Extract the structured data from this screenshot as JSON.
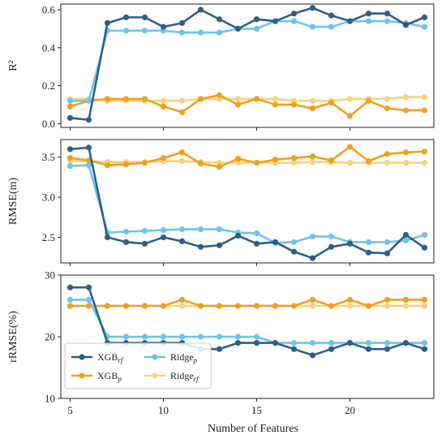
{
  "chart_data": {
    "type": "line",
    "xlabel": "Number of Features",
    "x": [
      5,
      6,
      7,
      8,
      9,
      10,
      11,
      12,
      13,
      14,
      15,
      16,
      17,
      18,
      19,
      20,
      21,
      22,
      23,
      24
    ],
    "xlim": [
      4.5,
      24.5
    ],
    "xticks": [
      5,
      10,
      15,
      20
    ],
    "colors": {
      "xgb_rf": "#2f5f86",
      "xgb_p": "#f0a020",
      "ridge_p": "#6ec4ec",
      "ridge_rf": "#f8d27a"
    },
    "legend": {
      "placement": "lower-left",
      "entries": [
        {
          "key": "xgb_rf",
          "base": "XGB",
          "sub": "rf"
        },
        {
          "key": "xgb_p",
          "base": "XGB",
          "sub": "p"
        },
        {
          "key": "ridge_p",
          "base": "Ridge",
          "sub": "p"
        },
        {
          "key": "ridge_rf",
          "base": "Ridge",
          "sub": "rf"
        }
      ]
    },
    "panels": [
      {
        "ylabel": "R²",
        "ylim": [
          -0.02,
          0.63
        ],
        "yticks": [
          0.0,
          0.2,
          0.4,
          0.6
        ],
        "ytick_labels": [
          "0.0",
          "0.2",
          "0.4",
          "0.6"
        ],
        "series": [
          {
            "key": "xgb_rf",
            "values": [
              0.03,
              0.02,
              0.53,
              0.56,
              0.56,
              0.51,
              0.53,
              0.6,
              0.55,
              0.5,
              0.55,
              0.54,
              0.58,
              0.61,
              0.57,
              0.54,
              0.58,
              0.58,
              0.52,
              0.56
            ]
          },
          {
            "key": "xgb_p",
            "values": [
              0.09,
              0.12,
              0.13,
              0.13,
              0.13,
              0.09,
              0.06,
              0.13,
              0.15,
              0.1,
              0.13,
              0.1,
              0.1,
              0.08,
              0.11,
              0.04,
              0.12,
              0.08,
              0.07,
              0.07
            ]
          },
          {
            "key": "ridge_p",
            "values": [
              0.12,
              0.12,
              0.49,
              0.49,
              0.49,
              0.49,
              0.48,
              0.48,
              0.48,
              0.5,
              0.5,
              0.54,
              0.54,
              0.51,
              0.51,
              0.54,
              0.54,
              0.54,
              0.53,
              0.51
            ]
          },
          {
            "key": "ridge_rf",
            "values": [
              0.13,
              0.13,
              0.12,
              0.12,
              0.12,
              0.12,
              0.12,
              0.13,
              0.13,
              0.13,
              0.13,
              0.13,
              0.12,
              0.12,
              0.12,
              0.13,
              0.13,
              0.13,
              0.14,
              0.14
            ]
          }
        ]
      },
      {
        "ylabel": "RMSE(m)",
        "ylim": [
          2.18,
          3.72
        ],
        "yticks": [
          2.5,
          3.0,
          3.5
        ],
        "ytick_labels": [
          "2.5",
          "3.0",
          "3.5"
        ],
        "series": [
          {
            "key": "xgb_rf",
            "values": [
              3.6,
              3.62,
              2.5,
              2.44,
              2.42,
              2.5,
              2.45,
              2.38,
              2.4,
              2.52,
              2.42,
              2.44,
              2.32,
              2.24,
              2.38,
              2.42,
              2.31,
              2.3,
              2.53,
              2.37
            ]
          },
          {
            "key": "xgb_p",
            "values": [
              3.49,
              3.46,
              3.4,
              3.41,
              3.43,
              3.49,
              3.56,
              3.42,
              3.38,
              3.48,
              3.43,
              3.47,
              3.49,
              3.51,
              3.46,
              3.63,
              3.45,
              3.54,
              3.56,
              3.57
            ]
          },
          {
            "key": "ridge_p",
            "values": [
              3.39,
              3.4,
              2.56,
              2.57,
              2.58,
              2.59,
              2.6,
              2.6,
              2.6,
              2.56,
              2.55,
              2.43,
              2.44,
              2.51,
              2.51,
              2.44,
              2.44,
              2.44,
              2.46,
              2.53
            ]
          },
          {
            "key": "ridge_rf",
            "values": [
              3.45,
              3.45,
              3.44,
              3.44,
              3.44,
              3.45,
              3.45,
              3.44,
              3.43,
              3.43,
              3.43,
              3.43,
              3.43,
              3.44,
              3.44,
              3.43,
              3.43,
              3.43,
              3.43,
              3.43
            ]
          }
        ]
      },
      {
        "ylabel": "rRMSE(%)",
        "ylim": [
          10,
          30
        ],
        "yticks": [
          10,
          20,
          30
        ],
        "ytick_labels": [
          "10",
          "20",
          "30"
        ],
        "series": [
          {
            "key": "xgb_rf",
            "values": [
              28,
              28,
              19,
              19,
              19,
              19,
              19,
              18,
              18,
              19,
              19,
              19,
              18,
              17,
              18,
              19,
              18,
              18,
              19,
              18
            ]
          },
          {
            "key": "xgb_p",
            "values": [
              25,
              25,
              25,
              25,
              25,
              25,
              26,
              25,
              25,
              25,
              25,
              25,
              25,
              26,
              25,
              26,
              25,
              26,
              26,
              26
            ]
          },
          {
            "key": "ridge_p",
            "values": [
              26,
              26,
              20,
              20,
              20,
              20,
              20,
              20,
              20,
              20,
              20,
              19,
              19,
              19,
              19,
              19,
              19,
              19,
              19,
              19
            ]
          },
          {
            "key": "ridge_rf",
            "values": [
              25,
              25,
              25,
              25,
              25,
              25,
              25,
              25,
              25,
              25,
              25,
              25,
              25,
              25,
              25,
              25,
              25,
              25,
              25,
              25
            ]
          }
        ]
      }
    ]
  }
}
